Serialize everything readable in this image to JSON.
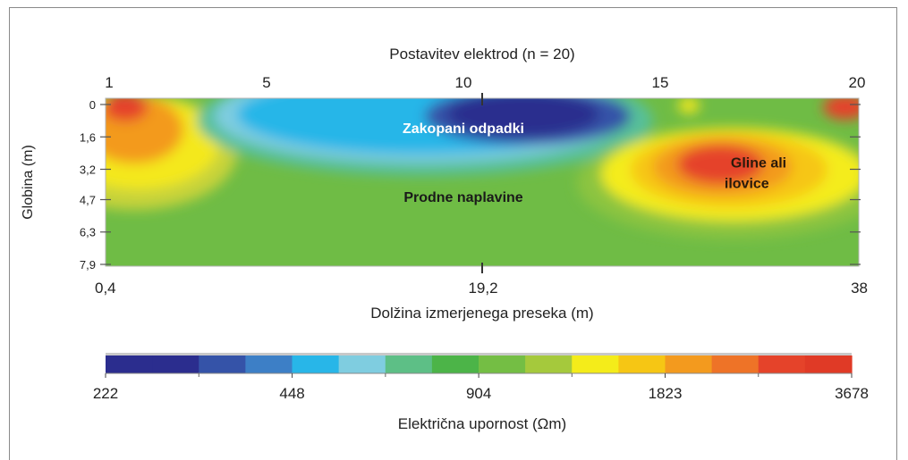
{
  "chart_data": {
    "type": "heatmap",
    "title": "Postavitev elektrod (n = 20)",
    "top_axis": {
      "range": [
        1,
        20
      ],
      "ticks": [
        "1",
        "5",
        "10",
        "15",
        "20"
      ],
      "tick_values": [
        1,
        5,
        10,
        15,
        20
      ]
    },
    "bottom_axis": {
      "label": "Dolžina izmerjenega preseka (m)",
      "range": [
        0.4,
        38
      ],
      "ticks": [
        "0,4",
        "19,2",
        "38"
      ],
      "tick_values": [
        0.4,
        19.2,
        38
      ]
    },
    "y_axis": {
      "label": "Globina (m)",
      "range": [
        0,
        7.9
      ],
      "inverted": true,
      "ticks": [
        "0",
        "1,6",
        "3,2",
        "4,7",
        "6,3",
        "7,9"
      ],
      "tick_values": [
        0,
        1.6,
        3.2,
        4.7,
        6.3,
        7.9
      ]
    },
    "annotations": [
      {
        "text": "Zakopani odpadki",
        "x": 10,
        "y": 1.2,
        "color": "#ffffff"
      },
      {
        "text": "Prodne naplavine",
        "x": 10,
        "y": 4.6,
        "color": "#1a1a1a"
      },
      {
        "text": "Gline ali",
        "x": 17.5,
        "y": 2.9,
        "color": "#2a1a0a"
      },
      {
        "text": "ilovice",
        "x": 17.2,
        "y": 3.9,
        "color": "#2a1a0a"
      }
    ],
    "colorbar": {
      "label": "Električna upornost (Ωm)",
      "ticks": [
        "222",
        "448",
        "904",
        "1823",
        "3678"
      ],
      "tick_values": [
        222,
        448,
        904,
        1823,
        3678
      ],
      "colors": [
        "#2b2d8e",
        "#2b2d8e",
        "#3553a8",
        "#3d7fc6",
        "#28b6e8",
        "#7fcde0",
        "#5dbf86",
        "#4cb448",
        "#74be44",
        "#a5c93c",
        "#f4ec1a",
        "#f6c614",
        "#f39a1e",
        "#ee7327",
        "#e5432a",
        "#e03a26"
      ]
    }
  }
}
